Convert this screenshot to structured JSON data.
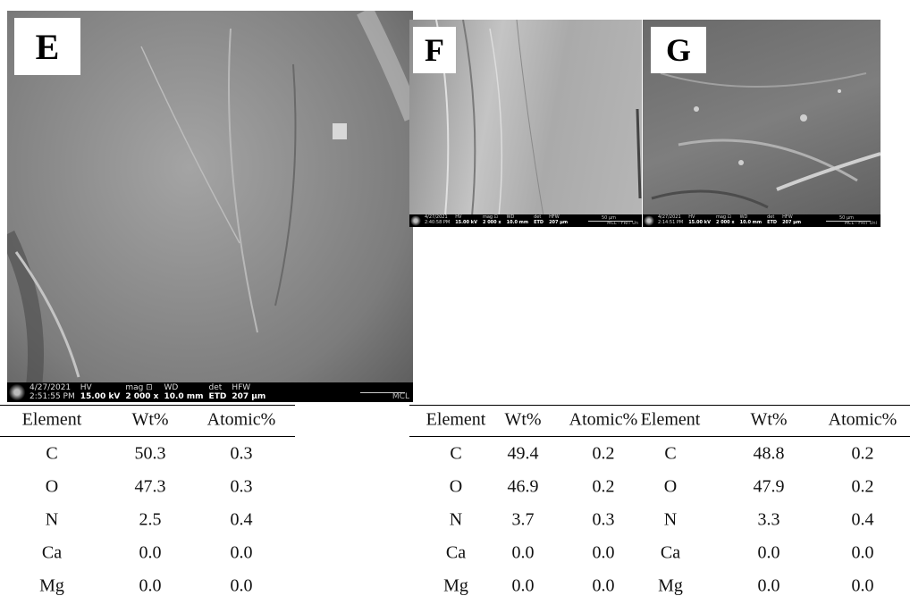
{
  "panels": [
    {
      "label": "E",
      "info": {
        "date": "4/27/2021",
        "time": "2:51:55 PM",
        "fields": [
          [
            "HV",
            "15.00 kV"
          ],
          [
            "mag ⊡",
            "2 000 x"
          ],
          [
            "WD",
            "10.0 mm"
          ],
          [
            "det",
            "ETD"
          ],
          [
            "HFW",
            "207 µm"
          ]
        ],
        "footer": "MCL"
      }
    },
    {
      "label": "F",
      "info": {
        "date": "4/27/2021",
        "time": "2:40:58 PM",
        "fields": [
          [
            "HV",
            "15.00 kV"
          ],
          [
            "mag ⊡",
            "2 000 x"
          ],
          [
            "WD",
            "10.0 mm"
          ],
          [
            "det",
            "ETD"
          ],
          [
            "HFW",
            "207 µm"
          ]
        ],
        "scale": "50 µm",
        "footer": "MCL - FRIT Un"
      }
    },
    {
      "label": "G",
      "info": {
        "date": "4/27/2021",
        "time": "2:14:51 PM",
        "fields": [
          [
            "HV",
            "15.00 kV"
          ],
          [
            "mag ⊡",
            "2 000 x"
          ],
          [
            "WD",
            "10.0 mm"
          ],
          [
            "det",
            "ETD"
          ],
          [
            "HFW",
            "207 µm"
          ]
        ],
        "scale": "50 µm",
        "footer": "MCL - FRIT Uni"
      }
    }
  ],
  "tables": [
    {
      "header": [
        "Element",
        "Wt%",
        "Atomic%"
      ],
      "rows": [
        [
          "C",
          "50.3",
          "0.3"
        ],
        [
          "O",
          "47.3",
          "0.3"
        ],
        [
          "N",
          "2.5",
          "0.4"
        ],
        [
          "Ca",
          "0.0",
          "0.0"
        ],
        [
          "Mg",
          "0.0",
          "0.0"
        ]
      ]
    },
    {
      "header": [
        "Element",
        "Wt%",
        "Atomic%"
      ],
      "rows": [
        [
          "C",
          "49.4",
          "0.2"
        ],
        [
          "O",
          "46.9",
          "0.2"
        ],
        [
          "N",
          "3.7",
          "0.3"
        ],
        [
          "Ca",
          "0.0",
          "0.0"
        ],
        [
          "Mg",
          "0.0",
          "0.0"
        ]
      ]
    },
    {
      "header": [
        "Element",
        "Wt%",
        "Atomic%"
      ],
      "rows": [
        [
          "C",
          "48.8",
          "0.2"
        ],
        [
          "O",
          "47.9",
          "0.2"
        ],
        [
          "N",
          "3.3",
          "0.4"
        ],
        [
          "Ca",
          "0.0",
          "0.0"
        ],
        [
          "Mg",
          "0.0",
          "0.0"
        ]
      ]
    }
  ]
}
